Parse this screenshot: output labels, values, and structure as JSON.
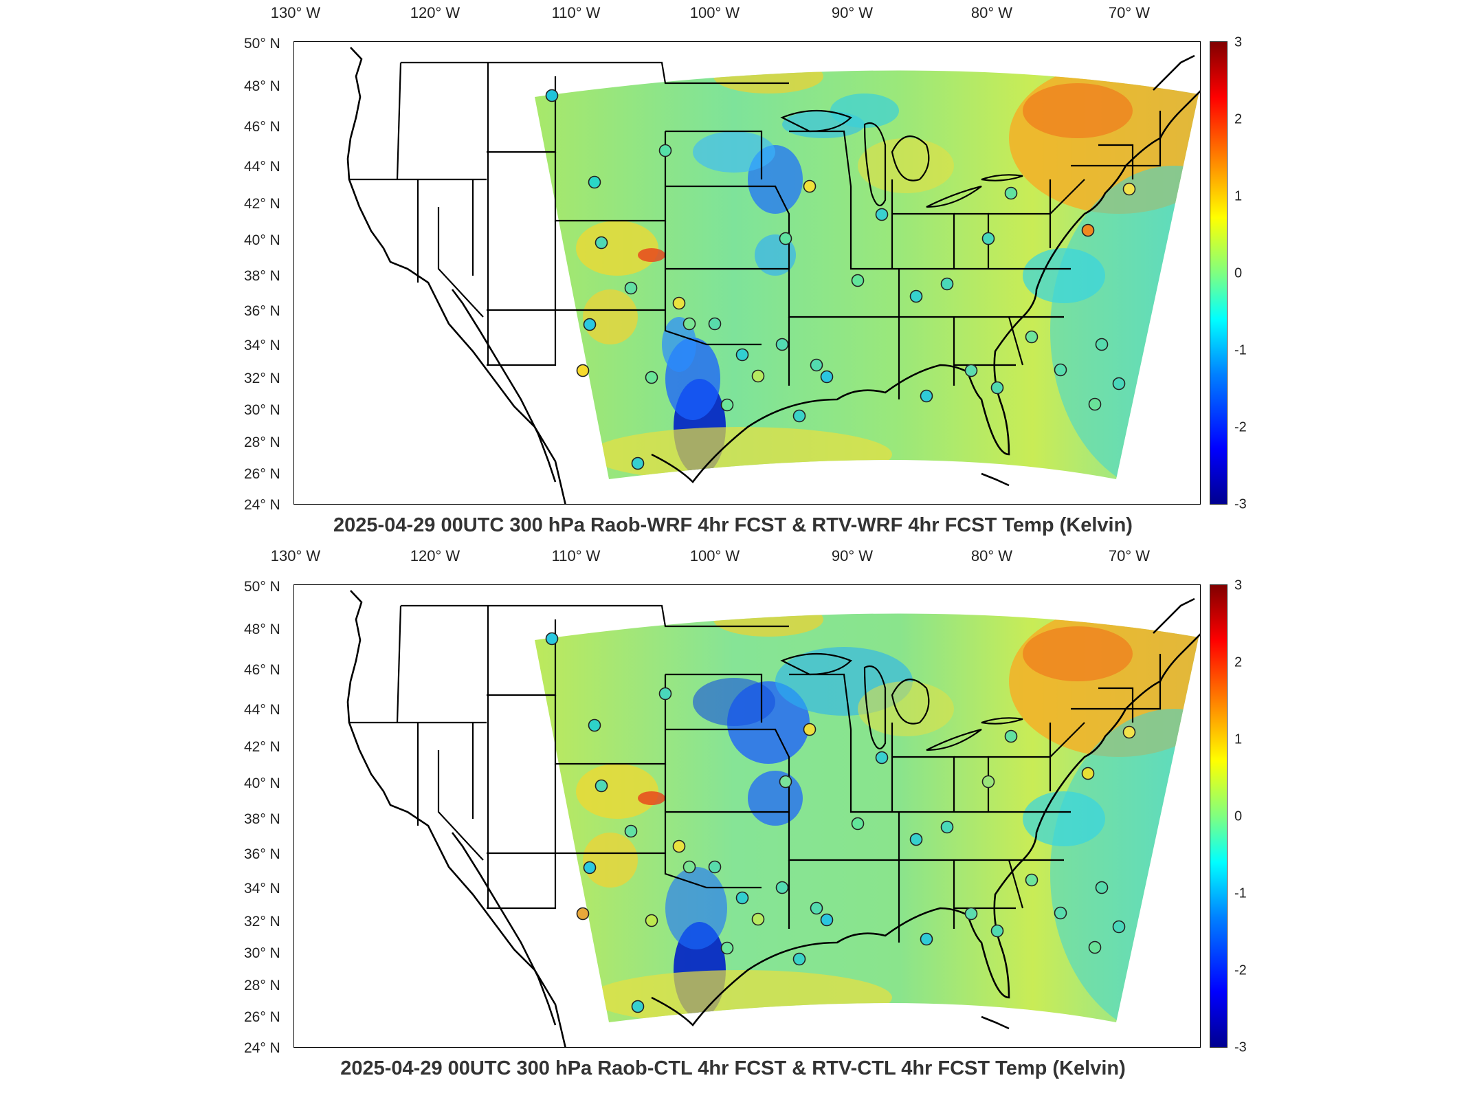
{
  "lon_labels": [
    "130° W",
    "120° W",
    "110° W",
    "100° W",
    "90° W",
    "80° W",
    "70° W"
  ],
  "lat_labels": [
    "50° N",
    "48° N",
    "46° N",
    "44° N",
    "42° N",
    "40° N",
    "38° N",
    "36° N",
    "34° N",
    "32° N",
    "30° N",
    "28° N",
    "26° N",
    "24° N"
  ],
  "colorbar": {
    "ticks": [
      "3",
      "2",
      "1",
      "0",
      "-1",
      "-2",
      "-3"
    ],
    "range": [
      -3,
      3
    ],
    "colormap": "jet"
  },
  "panels": [
    {
      "caption": "2025-04-29 00UTC 300 hPa Raob-WRF 4hr FCST & RTV-WRF 4hr FCST Temp (Kelvin)",
      "station_colors": [
        "#1ec4d9",
        "#55e0a8",
        "#2ad7c7",
        "#f0e23a",
        "#5fe3a0",
        "#39d0cf",
        "#62e59a",
        "#36d1cd",
        "#4ad9b9",
        "#48d8bc",
        "#f2e24c",
        "#62e2a0",
        "#f08a20",
        "#e9e23f",
        "#53dbaf",
        "#3ad2c7",
        "#6ee59a",
        "#36cfcf",
        "#2ac8e0",
        "#4ed9b5",
        "#58dcab",
        "#62e0a3",
        "#7ae493",
        "#32cfd0",
        "#53dbb3",
        "#b7ea60",
        "#2bc6e0",
        "#f7da2b",
        "#6ae698",
        "#30cbd7",
        "#5cdcae",
        "#51dab0",
        "#58ddad",
        "#6ee49b",
        "#56dbad",
        "#49d7bb",
        "#6ae399"
      ]
    },
    {
      "caption": "2025-04-29 00UTC 300 hPa Raob-CTL 4hr FCST & RTV-CTL 4hr FCST Temp (Kelvin)",
      "station_colors": [
        "#2ac8e0",
        "#49d7bb",
        "#2ed2c9",
        "#ecdf40",
        "#7ae39a",
        "#39d0cf",
        "#62e59a",
        "#36d1cd",
        "#4ad9b9",
        "#9ae57a",
        "#f2e24c",
        "#62e2a0",
        "#e8e035",
        "#e9e23f",
        "#53dbaf",
        "#3ad2c7",
        "#6ee59a",
        "#36cfcf",
        "#2ac8e0",
        "#4ed9b5",
        "#58dcab",
        "#62e0a3",
        "#7ae493",
        "#32cfd0",
        "#53dbb3",
        "#b7ea60",
        "#2bc6e0",
        "#e8a83a",
        "#bde94f",
        "#30cbd7",
        "#5cdcae",
        "#51dab0",
        "#58ddad",
        "#6ee49b",
        "#56dbad",
        "#49d7bb",
        "#6ae399"
      ]
    }
  ]
}
